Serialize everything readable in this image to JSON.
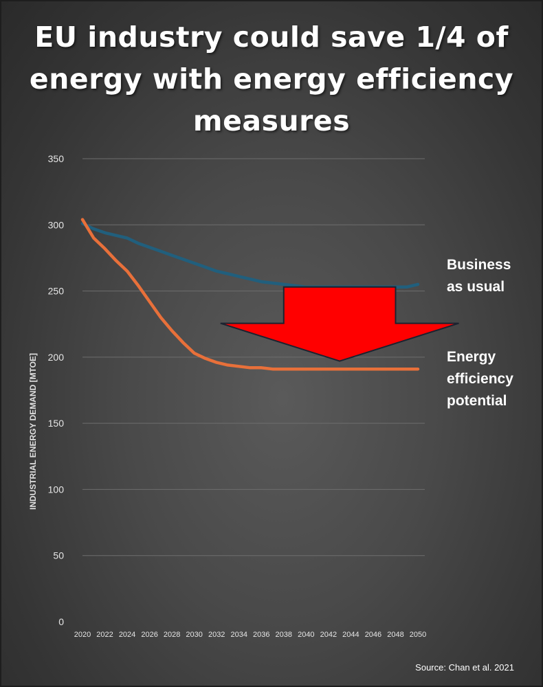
{
  "chart_data": {
    "type": "line",
    "title": "EU industry could save 1/4 of energy with energy efficiency measures",
    "ylabel": "INDUSTRIAL ENERGY DEMAND [MTOE]",
    "xlabel": "",
    "ylim": [
      0,
      350
    ],
    "yticks": [
      0,
      50,
      100,
      150,
      200,
      250,
      300,
      350
    ],
    "xlim": [
      2020,
      2050
    ],
    "xticks": [
      2020,
      2022,
      2024,
      2026,
      2028,
      2030,
      2032,
      2034,
      2036,
      2038,
      2040,
      2042,
      2044,
      2046,
      2048,
      2050
    ],
    "grid": true,
    "x": [
      2020,
      2021,
      2022,
      2023,
      2024,
      2025,
      2026,
      2027,
      2028,
      2029,
      2030,
      2031,
      2032,
      2033,
      2034,
      2035,
      2036,
      2037,
      2038,
      2039,
      2040,
      2041,
      2042,
      2043,
      2044,
      2045,
      2046,
      2047,
      2048,
      2049,
      2050
    ],
    "series": [
      {
        "name": "Business as usual",
        "label_lines": [
          "Business",
          "as usual"
        ],
        "color": "#215f7d",
        "values": [
          301,
          297,
          294,
          292,
          290,
          286,
          283,
          280,
          277,
          274,
          271,
          268,
          265,
          263,
          261,
          259,
          257,
          256,
          255,
          254,
          253,
          253,
          253,
          253,
          253,
          253,
          253,
          253,
          253,
          253,
          255
        ]
      },
      {
        "name": "Energy efficiency potential",
        "label_lines": [
          "Energy",
          "efficiency",
          "potential"
        ],
        "color": "#e8703a",
        "values": [
          304,
          290,
          282,
          273,
          265,
          254,
          242,
          230,
          220,
          211,
          203,
          199,
          196,
          194,
          193,
          192,
          192,
          191,
          191,
          191,
          191,
          191,
          191,
          191,
          191,
          191,
          191,
          191,
          191,
          191,
          191
        ]
      }
    ],
    "annotations": [
      {
        "type": "arrow",
        "direction": "down",
        "color": "#ff0000",
        "from_x": 2038,
        "to_x": 2048,
        "top_y": 253,
        "bottom_y": 197
      }
    ],
    "source": "Source: Chan et al. 2021"
  }
}
